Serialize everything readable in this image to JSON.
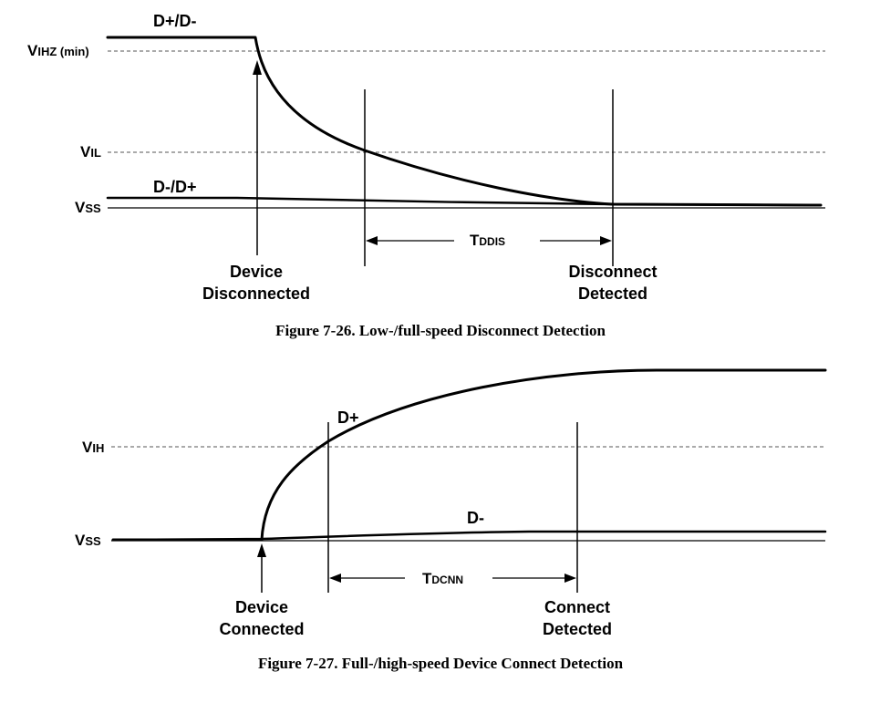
{
  "figure1": {
    "caption": "Figure 7-26.  Low-/full-speed Disconnect Detection",
    "signal_top_label": "D+/D-",
    "signal_bottom_label": "D-/D+",
    "levels": {
      "vihz": {
        "main": "V",
        "sub": "IHZ",
        "suffix": " (min)"
      },
      "vil": {
        "main": "V",
        "sub": "IL"
      },
      "vss": {
        "main": "V",
        "sub": "SS"
      }
    },
    "timing": {
      "main": "T",
      "sub": "DDIS"
    },
    "event_start": [
      "Device",
      "Disconnected"
    ],
    "event_end": [
      "Disconnect",
      "Detected"
    ]
  },
  "figure2": {
    "caption": "Figure 7-27.  Full-/high-speed Device Connect Detection",
    "signal_top_label": "D+",
    "signal_bottom_label": "D-",
    "levels": {
      "vih": {
        "main": "V",
        "sub": "IH"
      },
      "vss": {
        "main": "V",
        "sub": "SS"
      }
    },
    "timing": {
      "main": "T",
      "sub": "DCNN"
    },
    "event_start": [
      "Device",
      "Connected"
    ],
    "event_end": [
      "Connect",
      "Detected"
    ]
  }
}
